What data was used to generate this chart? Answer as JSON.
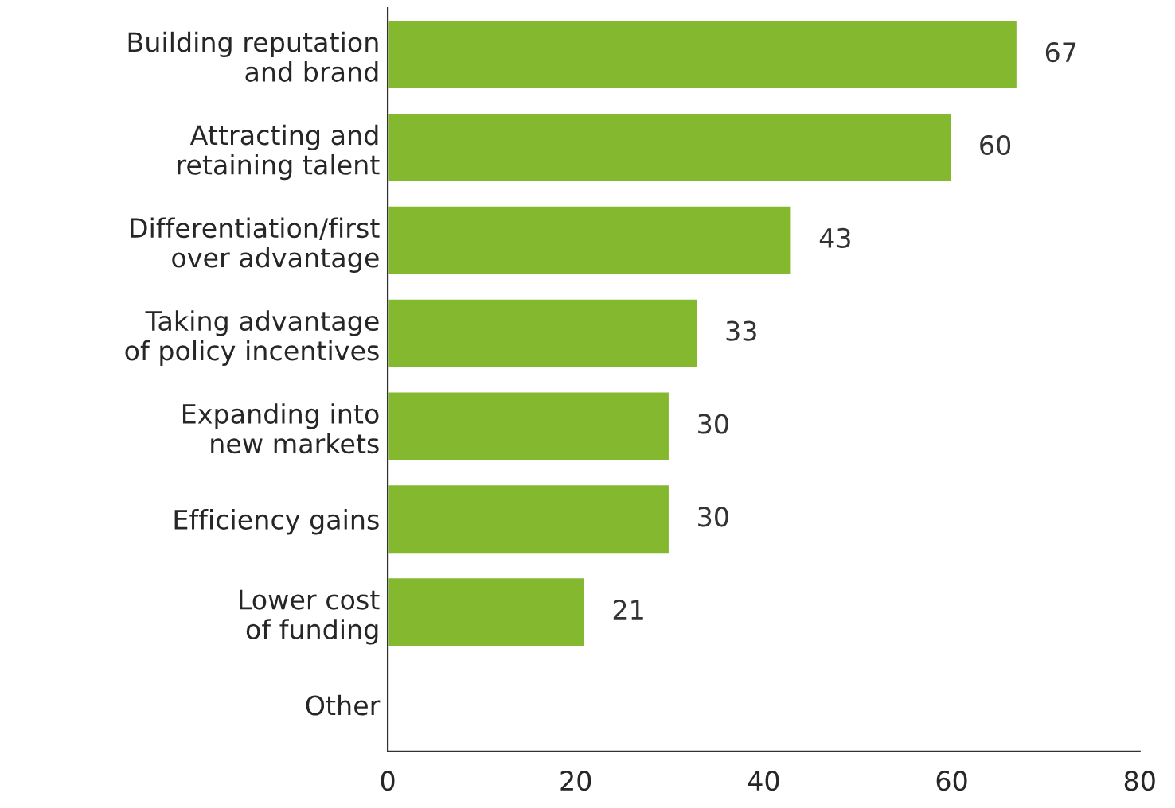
{
  "chart_data": {
    "type": "bar",
    "orientation": "horizontal",
    "categories": [
      "Building reputation\nand brand",
      "Attracting and\nretaining talent",
      "Differentiation/first\nover advantage",
      "Taking advantage\nof policy incentives",
      "Expanding into\nnew markets",
      "Efficiency gains",
      "Lower cost\nof funding",
      "Other"
    ],
    "values": [
      67,
      60,
      43,
      33,
      30,
      30,
      21,
      null
    ],
    "value_labels": [
      "67",
      "60",
      "43",
      "33",
      "30",
      "30",
      "21",
      null
    ],
    "color": "#84b82f",
    "xlim": [
      0,
      80
    ],
    "xticks": [
      0,
      20,
      40,
      60,
      80
    ],
    "grid": false
  }
}
